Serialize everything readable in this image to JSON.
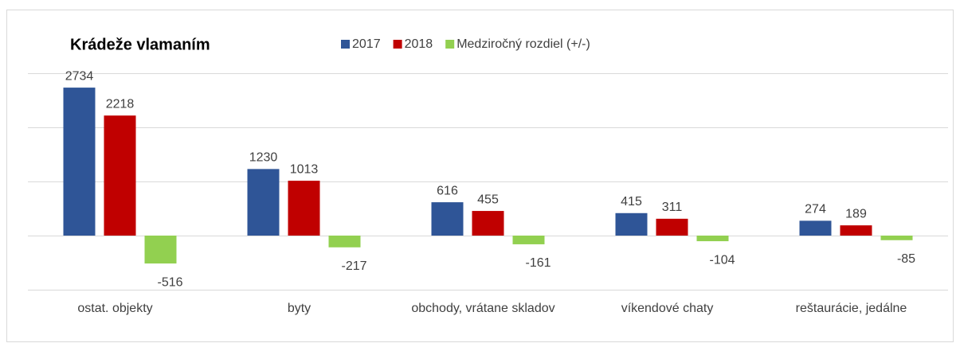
{
  "chart_data": {
    "type": "bar",
    "title": "Krádeže vlamaním",
    "categories": [
      "ostat. objekty",
      "byty",
      "obchody, vrátane skladov",
      "víkendové chaty",
      "reštaurácie, jedálne"
    ],
    "series": [
      {
        "name": "2017",
        "color": "#2f5597",
        "values": [
          2734,
          1230,
          616,
          415,
          274
        ]
      },
      {
        "name": "2018",
        "color": "#c00000",
        "values": [
          2218,
          1013,
          455,
          311,
          189
        ]
      },
      {
        "name": "Medziročný rozdiel (+/-)",
        "color": "#92d050",
        "values": [
          -516,
          -217,
          -161,
          -104,
          -85
        ]
      }
    ],
    "ylim": [
      -1000,
      3000
    ],
    "yticks": [
      -1000,
      0,
      1000,
      2000,
      3000
    ],
    "grid": true,
    "legend": "top"
  }
}
